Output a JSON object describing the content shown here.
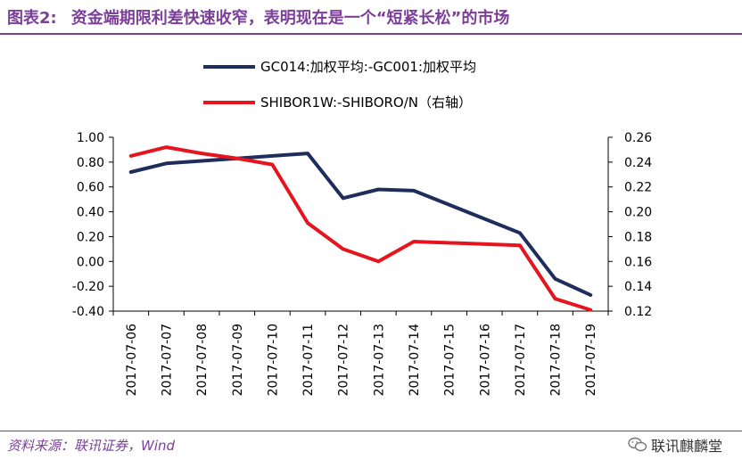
{
  "header": {
    "figure_number": "图表2:",
    "title": "资金端期限利差快速收窄，表明现在是一个“短紧长松”的市场"
  },
  "footer": {
    "source": "资料来源：联讯证券，Wind",
    "watermark": "联讯麒麟堂"
  },
  "colors": {
    "title": "#7b3f98",
    "series_left": "#1f2d5c",
    "series_right": "#e6141e"
  },
  "chart_data": {
    "type": "line",
    "x": [
      "2017-07-06",
      "2017-07-07",
      "2017-07-08",
      "2017-07-09",
      "2017-07-10",
      "2017-07-11",
      "2017-07-12",
      "2017-07-13",
      "2017-07-14",
      "2017-07-15",
      "2017-07-16",
      "2017-07-17",
      "2017-07-18",
      "2017-07-19"
    ],
    "series": [
      {
        "name": "GC014:加权平均:-GC001:加权平均",
        "axis": "left",
        "color": "#1f2d5c",
        "values": [
          0.72,
          0.79,
          0.81,
          0.83,
          0.85,
          0.87,
          0.51,
          0.58,
          0.57,
          null,
          null,
          0.23,
          -0.14,
          -0.27
        ]
      },
      {
        "name": "SHIBOR1W:-SHIBORO/N（右轴）",
        "axis": "right",
        "color": "#e6141e",
        "values": [
          0.245,
          0.252,
          0.247,
          0.243,
          0.238,
          0.191,
          0.17,
          0.16,
          0.176,
          null,
          null,
          0.173,
          0.13,
          0.121
        ]
      }
    ],
    "y_left": {
      "min": -0.4,
      "max": 1.0,
      "ticks": [
        "1.00",
        "0.80",
        "0.60",
        "0.40",
        "0.20",
        "0.00",
        "-0.20",
        "-0.40"
      ]
    },
    "y_right": {
      "min": 0.12,
      "max": 0.26,
      "ticks": [
        "0.26",
        "0.24",
        "0.22",
        "0.20",
        "0.18",
        "0.16",
        "0.14",
        "0.12"
      ]
    },
    "grid": false,
    "legend_placement": "top-center"
  }
}
